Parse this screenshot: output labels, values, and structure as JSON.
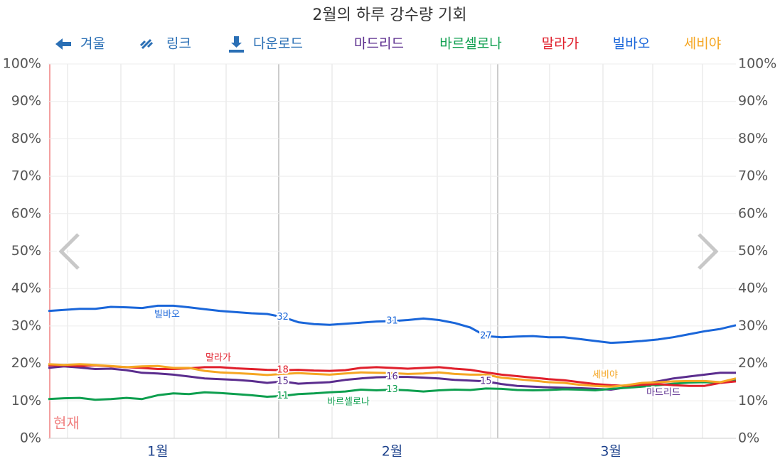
{
  "chart_data": {
    "type": "line",
    "title": "2월의 하루 강수량 기회",
    "toolbar": [
      "겨울",
      "링크",
      "다운로드"
    ],
    "annotation": "현재",
    "categories": [
      null,
      null,
      null,
      null,
      null,
      null,
      null,
      "1월",
      null,
      null,
      null,
      null,
      null,
      null,
      null,
      null,
      null,
      null,
      null,
      null,
      null,
      null,
      "2월",
      null,
      null,
      null,
      null,
      null,
      null,
      null,
      null,
      null,
      null,
      null,
      null,
      null,
      "3월",
      null,
      null,
      null,
      null,
      null,
      null,
      null,
      null
    ],
    "ylim": [
      0,
      100
    ],
    "yticks": [
      {
        "value": 0,
        "label": "0%"
      },
      {
        "value": 10,
        "label": "10%"
      },
      {
        "value": 20,
        "label": "20%"
      },
      {
        "value": 30,
        "label": "30%"
      },
      {
        "value": 40,
        "label": "40%"
      },
      {
        "value": 50,
        "label": "50%"
      },
      {
        "value": 60,
        "label": "60%"
      },
      {
        "value": 70,
        "label": "70%"
      },
      {
        "value": 80,
        "label": "80%"
      },
      {
        "value": 90,
        "label": "90%"
      },
      {
        "value": 100,
        "label": "100%"
      }
    ],
    "grid": true,
    "series": [
      {
        "name": "마드리드",
        "color": "#5b2d8e",
        "values": [
          18.8,
          19.2,
          18.9,
          18.5,
          18.6,
          18.2,
          17.5,
          17.3,
          17.0,
          16.5,
          16.0,
          15.8,
          15.6,
          15.3,
          14.8,
          15.2,
          14.6,
          14.8,
          15.0,
          15.6,
          16.0,
          16.3,
          16.4,
          16.4,
          16.2,
          16.0,
          15.6,
          15.4,
          15.2,
          14.5,
          14.0,
          13.8,
          13.6,
          13.5,
          13.4,
          13.2,
          13.0,
          13.6,
          14.5,
          15.2,
          16.0,
          16.5,
          17.0,
          17.5,
          17.5
        ],
        "value_labels": [
          null,
          null,
          null,
          null,
          null,
          null,
          null,
          null,
          null,
          null,
          null,
          null,
          null,
          null,
          null,
          "15",
          null,
          null,
          null,
          null,
          null,
          null,
          "16",
          null,
          null,
          null,
          null,
          null,
          "15",
          null,
          null,
          null,
          null,
          null,
          null,
          null,
          null,
          null,
          null,
          null,
          null,
          null,
          null,
          null,
          null
        ]
      },
      {
        "name": "바르셀로나",
        "color": "#0e9f4f",
        "values": [
          10.5,
          10.7,
          10.8,
          10.3,
          10.5,
          10.8,
          10.5,
          11.5,
          12.0,
          11.8,
          12.3,
          12.1,
          11.8,
          11.5,
          11.1,
          11.3,
          11.8,
          12.0,
          12.3,
          12.5,
          13.0,
          12.8,
          13.0,
          12.8,
          12.5,
          12.8,
          13.0,
          12.9,
          13.3,
          13.2,
          12.9,
          12.8,
          12.9,
          13.1,
          13.0,
          12.8,
          13.2,
          13.5,
          13.8,
          14.2,
          14.6,
          14.9,
          15.0,
          14.8,
          15.5
        ],
        "value_labels": [
          null,
          null,
          null,
          null,
          null,
          null,
          null,
          null,
          null,
          null,
          null,
          null,
          null,
          null,
          null,
          "11",
          null,
          null,
          null,
          null,
          null,
          null,
          "13",
          null,
          null,
          null,
          null,
          null,
          null,
          null,
          null,
          null,
          null,
          null,
          null,
          null,
          null,
          null,
          null,
          null,
          null,
          null,
          null,
          null,
          null
        ]
      },
      {
        "name": "말라가",
        "color": "#e0202c",
        "values": [
          19.5,
          19.5,
          19.3,
          19.5,
          19.2,
          19.0,
          18.8,
          18.5,
          18.5,
          18.7,
          19.0,
          19.0,
          18.7,
          18.5,
          18.3,
          18.2,
          18.3,
          18.1,
          18.0,
          18.2,
          18.8,
          19.0,
          18.8,
          18.6,
          18.8,
          19.0,
          18.6,
          18.3,
          17.6,
          17.0,
          16.6,
          16.2,
          15.8,
          15.5,
          15.0,
          14.5,
          14.2,
          14.0,
          14.3,
          14.5,
          14.2,
          14.0,
          14.0,
          14.8,
          15.2
        ],
        "value_labels": [
          null,
          null,
          null,
          null,
          null,
          null,
          null,
          null,
          null,
          null,
          null,
          null,
          null,
          null,
          null,
          "18",
          null,
          null,
          null,
          null,
          null,
          null,
          null,
          null,
          null,
          null,
          null,
          null,
          null,
          null,
          null,
          null,
          null,
          null,
          null,
          null,
          null,
          null,
          null,
          null,
          null,
          null,
          null,
          null,
          null
        ]
      },
      {
        "name": "빌바오",
        "color": "#1a66d9",
        "values": [
          34.0,
          34.3,
          34.6,
          34.6,
          35.1,
          35.0,
          34.8,
          35.4,
          35.4,
          35.0,
          34.5,
          34.0,
          33.7,
          33.4,
          33.2,
          32.4,
          31.0,
          30.5,
          30.3,
          30.6,
          30.9,
          31.2,
          31.3,
          31.6,
          32.0,
          31.6,
          30.8,
          29.6,
          27.3,
          27.0,
          27.2,
          27.3,
          27.0,
          27.0,
          26.5,
          26.0,
          25.5,
          25.7,
          26.0,
          26.4,
          27.0,
          27.8,
          28.6,
          29.2,
          30.2
        ],
        "value_labels": [
          null,
          null,
          null,
          null,
          null,
          null,
          null,
          null,
          null,
          null,
          null,
          null,
          null,
          null,
          null,
          "32",
          null,
          null,
          null,
          null,
          null,
          null,
          "31",
          null,
          null,
          null,
          null,
          null,
          "27",
          null,
          null,
          null,
          null,
          null,
          null,
          null,
          null,
          null,
          null,
          null,
          null,
          null,
          null,
          null,
          null
        ]
      },
      {
        "name": "세비야",
        "color": "#f5a623",
        "values": [
          19.8,
          19.6,
          19.8,
          19.6,
          19.3,
          19.0,
          19.2,
          19.3,
          18.8,
          18.8,
          18.0,
          17.6,
          17.4,
          17.2,
          16.9,
          17.2,
          17.4,
          17.2,
          17.0,
          17.3,
          17.6,
          17.5,
          17.4,
          17.2,
          17.3,
          17.6,
          17.2,
          17.0,
          17.0,
          16.2,
          15.8,
          15.4,
          15.0,
          14.8,
          14.3,
          14.0,
          13.8,
          14.2,
          14.8,
          15.0,
          15.2,
          15.3,
          15.3,
          15.0,
          16.0
        ]
      }
    ]
  }
}
